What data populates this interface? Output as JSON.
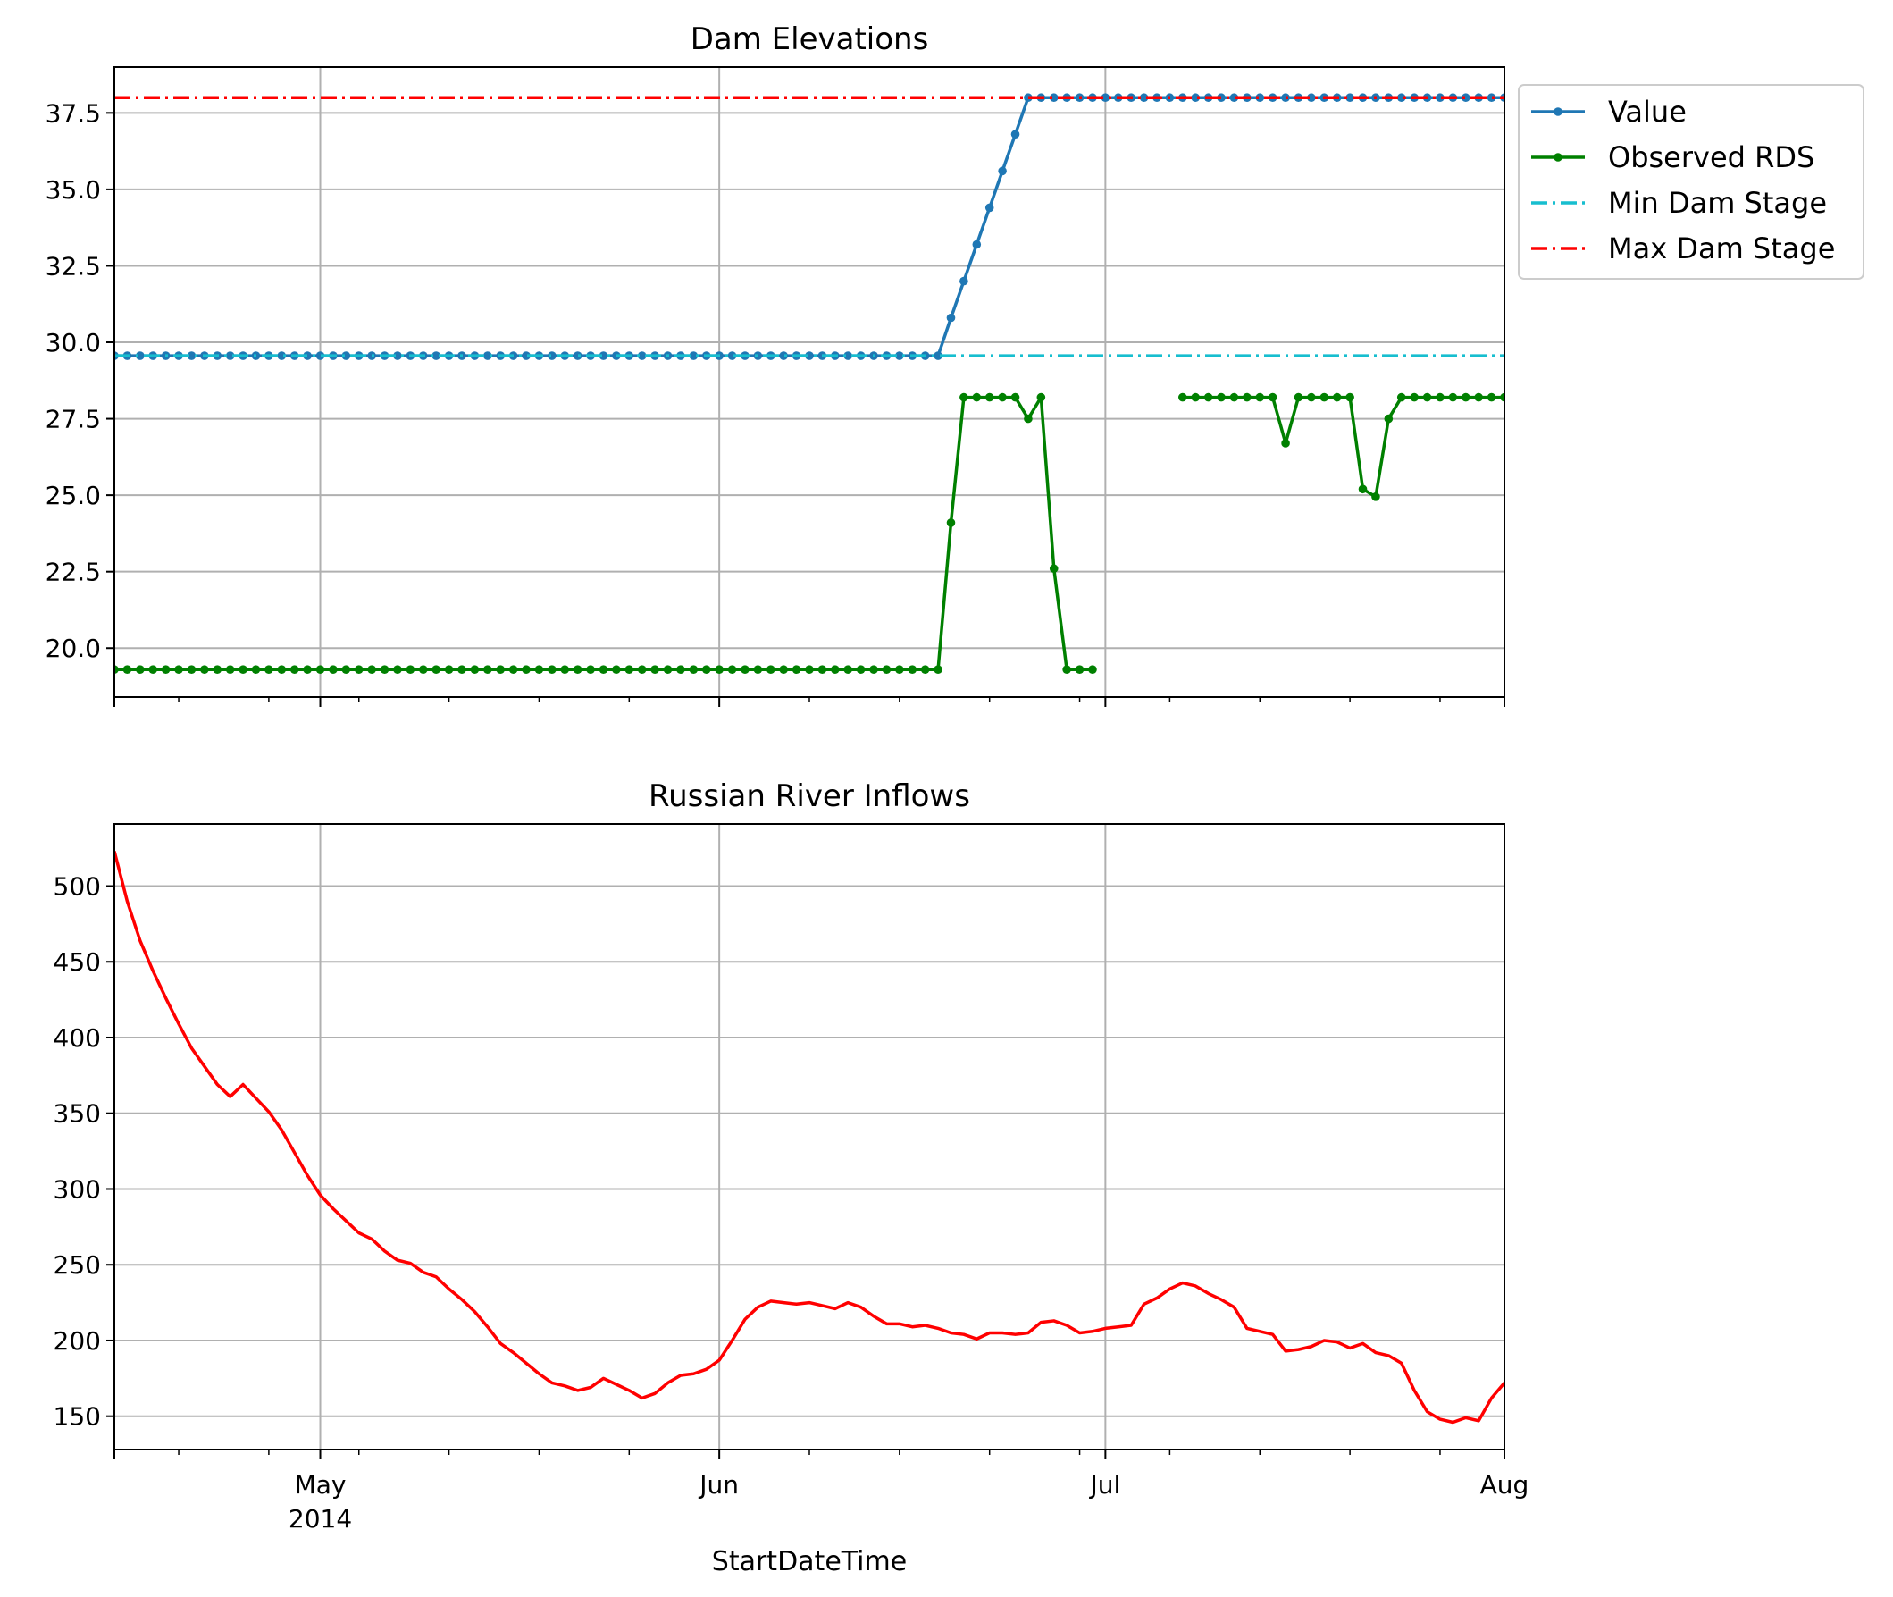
{
  "xlabel": "StartDateTime",
  "x_ticks": [
    {
      "date": "2014-05-01",
      "label": "May",
      "sublabel": "2014"
    },
    {
      "date": "2014-06-01",
      "label": "Jun",
      "sublabel": ""
    },
    {
      "date": "2014-07-01",
      "label": "Jul",
      "sublabel": ""
    },
    {
      "date": "2014-08-01",
      "label": "Aug",
      "sublabel": ""
    }
  ],
  "chart_data": [
    {
      "type": "line",
      "title": "Dam Elevations",
      "xlabel": "",
      "ylabel": "",
      "xlim": [
        "2014-04-15",
        "2014-08-01"
      ],
      "ylim": [
        18.4,
        39.0
      ],
      "y_ticks": [
        "20.0",
        "22.5",
        "25.0",
        "27.5",
        "30.0",
        "32.5",
        "35.0",
        "37.5"
      ],
      "grid": true,
      "legend_position": "outside right, top",
      "series": [
        {
          "name": "Value",
          "color": "#1f77b4",
          "style": "solid-markers",
          "segments": [
            [
              [
                "2014-04-15",
                29.56
              ],
              [
                "2014-06-18",
                29.56
              ],
              [
                "2014-06-19",
                30.8
              ],
              [
                "2014-06-20",
                32.0
              ],
              [
                "2014-06-21",
                33.2
              ],
              [
                "2014-06-22",
                34.4
              ],
              [
                "2014-06-23",
                35.6
              ],
              [
                "2014-06-24",
                36.8
              ],
              [
                "2014-06-25",
                38.0
              ],
              [
                "2014-08-01",
                38.0
              ]
            ]
          ]
        },
        {
          "name": "Observed RDS",
          "color": "#008000",
          "style": "solid-markers",
          "segments": [
            [
              [
                "2014-04-15",
                19.3
              ],
              [
                "2014-06-18",
                19.3
              ],
              [
                "2014-06-19",
                24.1
              ],
              [
                "2014-06-20",
                28.2
              ],
              [
                "2014-06-21",
                28.2
              ],
              [
                "2014-06-22",
                28.2
              ],
              [
                "2014-06-23",
                28.2
              ],
              [
                "2014-06-24",
                28.2
              ],
              [
                "2014-06-25",
                27.5
              ],
              [
                "2014-06-26",
                28.2
              ],
              [
                "2014-06-27",
                22.6
              ],
              [
                "2014-06-28",
                19.3
              ],
              [
                "2014-06-29",
                19.3
              ],
              [
                "2014-06-30",
                19.3
              ]
            ],
            [
              [
                "2014-07-07",
                28.2
              ],
              [
                "2014-07-08",
                28.2
              ],
              [
                "2014-07-09",
                28.2
              ],
              [
                "2014-07-10",
                28.2
              ],
              [
                "2014-07-11",
                28.2
              ],
              [
                "2014-07-12",
                28.2
              ],
              [
                "2014-07-13",
                28.2
              ],
              [
                "2014-07-14",
                28.2
              ],
              [
                "2014-07-15",
                26.7
              ],
              [
                "2014-07-16",
                28.2
              ],
              [
                "2014-07-17",
                28.2
              ],
              [
                "2014-07-18",
                28.2
              ],
              [
                "2014-07-19",
                28.2
              ],
              [
                "2014-07-20",
                28.2
              ],
              [
                "2014-07-21",
                25.2
              ],
              [
                "2014-07-22",
                24.95
              ],
              [
                "2014-07-23",
                27.5
              ],
              [
                "2014-07-24",
                28.2
              ],
              [
                "2014-07-25",
                28.2
              ],
              [
                "2014-07-26",
                28.2
              ],
              [
                "2014-07-27",
                28.2
              ],
              [
                "2014-07-28",
                28.2
              ],
              [
                "2014-07-29",
                28.2
              ],
              [
                "2014-07-30",
                28.2
              ],
              [
                "2014-07-31",
                28.2
              ],
              [
                "2014-08-01",
                28.2
              ]
            ]
          ]
        },
        {
          "name": "Min Dam Stage",
          "color": "#17becf",
          "style": "dashdot",
          "segments": [
            [
              [
                "2014-04-15",
                29.56
              ],
              [
                "2014-08-01",
                29.56
              ]
            ]
          ]
        },
        {
          "name": "Max Dam Stage",
          "color": "#ff0000",
          "style": "dashdot",
          "segments": [
            [
              [
                "2014-04-15",
                38.0
              ],
              [
                "2014-08-01",
                38.0
              ]
            ]
          ]
        }
      ]
    },
    {
      "type": "line",
      "title": "Russian River Inflows",
      "xlabel": "StartDateTime",
      "ylabel": "",
      "xlim": [
        "2014-04-15",
        "2014-08-01"
      ],
      "ylim": [
        128,
        541
      ],
      "y_ticks": [
        "150",
        "200",
        "250",
        "300",
        "350",
        "400",
        "450",
        "500"
      ],
      "grid": true,
      "series": [
        {
          "name": "",
          "color": "#ff0000",
          "style": "solid",
          "points": [
            [
              "2014-04-15",
              523
            ],
            [
              "2014-04-16",
              490
            ],
            [
              "2014-04-17",
              464
            ],
            [
              "2014-04-18",
              444
            ],
            [
              "2014-04-19",
              426
            ],
            [
              "2014-04-20",
              409
            ],
            [
              "2014-04-21",
              393
            ],
            [
              "2014-04-22",
              381
            ],
            [
              "2014-04-23",
              369
            ],
            [
              "2014-04-24",
              361
            ],
            [
              "2014-04-25",
              369
            ],
            [
              "2014-04-26",
              360
            ],
            [
              "2014-04-27",
              351
            ],
            [
              "2014-04-28",
              339
            ],
            [
              "2014-04-29",
              324
            ],
            [
              "2014-04-30",
              309
            ],
            [
              "2014-05-01",
              296
            ],
            [
              "2014-05-02",
              287
            ],
            [
              "2014-05-03",
              279
            ],
            [
              "2014-05-04",
              271
            ],
            [
              "2014-05-05",
              267
            ],
            [
              "2014-05-06",
              259
            ],
            [
              "2014-05-07",
              253
            ],
            [
              "2014-05-08",
              251
            ],
            [
              "2014-05-09",
              245
            ],
            [
              "2014-05-10",
              242
            ],
            [
              "2014-05-11",
              234
            ],
            [
              "2014-05-12",
              227
            ],
            [
              "2014-05-13",
              219
            ],
            [
              "2014-05-14",
              209
            ],
            [
              "2014-05-15",
              198
            ],
            [
              "2014-05-16",
              192
            ],
            [
              "2014-05-17",
              185
            ],
            [
              "2014-05-18",
              178
            ],
            [
              "2014-05-19",
              172
            ],
            [
              "2014-05-20",
              170
            ],
            [
              "2014-05-21",
              167
            ],
            [
              "2014-05-22",
              169
            ],
            [
              "2014-05-23",
              175
            ],
            [
              "2014-05-24",
              171
            ],
            [
              "2014-05-25",
              167
            ],
            [
              "2014-05-26",
              162
            ],
            [
              "2014-05-27",
              165
            ],
            [
              "2014-05-28",
              172
            ],
            [
              "2014-05-29",
              177
            ],
            [
              "2014-05-30",
              178
            ],
            [
              "2014-05-31",
              181
            ],
            [
              "2014-06-01",
              187
            ],
            [
              "2014-06-02",
              200
            ],
            [
              "2014-06-03",
              214
            ],
            [
              "2014-06-04",
              222
            ],
            [
              "2014-06-05",
              226
            ],
            [
              "2014-06-06",
              225
            ],
            [
              "2014-06-07",
              224
            ],
            [
              "2014-06-08",
              225
            ],
            [
              "2014-06-09",
              223
            ],
            [
              "2014-06-10",
              221
            ],
            [
              "2014-06-11",
              225
            ],
            [
              "2014-06-12",
              222
            ],
            [
              "2014-06-13",
              216
            ],
            [
              "2014-06-14",
              211
            ],
            [
              "2014-06-15",
              211
            ],
            [
              "2014-06-16",
              209
            ],
            [
              "2014-06-17",
              210
            ],
            [
              "2014-06-18",
              208
            ],
            [
              "2014-06-19",
              205
            ],
            [
              "2014-06-20",
              204
            ],
            [
              "2014-06-21",
              201
            ],
            [
              "2014-06-22",
              205
            ],
            [
              "2014-06-23",
              205
            ],
            [
              "2014-06-24",
              204
            ],
            [
              "2014-06-25",
              205
            ],
            [
              "2014-06-26",
              212
            ],
            [
              "2014-06-27",
              213
            ],
            [
              "2014-06-28",
              210
            ],
            [
              "2014-06-29",
              205
            ],
            [
              "2014-06-30",
              206
            ],
            [
              "2014-07-01",
              208
            ],
            [
              "2014-07-02",
              209
            ],
            [
              "2014-07-03",
              210
            ],
            [
              "2014-07-04",
              224
            ],
            [
              "2014-07-05",
              228
            ],
            [
              "2014-07-06",
              234
            ],
            [
              "2014-07-07",
              238
            ],
            [
              "2014-07-08",
              236
            ],
            [
              "2014-07-09",
              231
            ],
            [
              "2014-07-10",
              227
            ],
            [
              "2014-07-11",
              222
            ],
            [
              "2014-07-12",
              208
            ],
            [
              "2014-07-13",
              206
            ],
            [
              "2014-07-14",
              204
            ],
            [
              "2014-07-15",
              193
            ],
            [
              "2014-07-16",
              194
            ],
            [
              "2014-07-17",
              196
            ],
            [
              "2014-07-18",
              200
            ],
            [
              "2014-07-19",
              199
            ],
            [
              "2014-07-20",
              195
            ],
            [
              "2014-07-21",
              198
            ],
            [
              "2014-07-22",
              192
            ],
            [
              "2014-07-23",
              190
            ],
            [
              "2014-07-24",
              185
            ],
            [
              "2014-07-25",
              167
            ],
            [
              "2014-07-26",
              153
            ],
            [
              "2014-07-27",
              148
            ],
            [
              "2014-07-28",
              146
            ],
            [
              "2014-07-29",
              149
            ],
            [
              "2014-07-30",
              147
            ],
            [
              "2014-07-31",
              162
            ],
            [
              "2014-08-01",
              172
            ]
          ]
        }
      ]
    }
  ]
}
